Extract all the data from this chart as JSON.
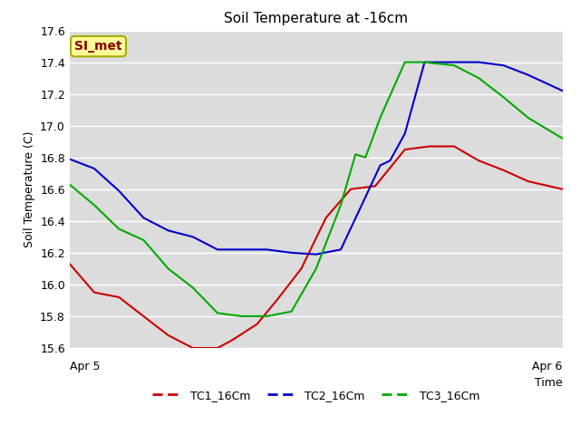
{
  "title": "Soil Temperature at -16cm",
  "xlabel": "Time",
  "ylabel": "Soil Temperature (C)",
  "xlim": [
    0,
    1
  ],
  "ylim": [
    15.6,
    17.6
  ],
  "yticks": [
    15.6,
    15.8,
    16.0,
    16.2,
    16.4,
    16.6,
    16.8,
    17.0,
    17.2,
    17.4,
    17.6
  ],
  "xtick_labels": [
    "Apr 5",
    "Apr 6"
  ],
  "xtick_positions": [
    0.0,
    1.0
  ],
  "annotation_text": "SI_met",
  "annotation_color": "#8B0000",
  "annotation_bg": "#FFFF99",
  "annotation_border": "#AAAA00",
  "plot_bg_color": "#DCDCDC",
  "fig_bg_color": "#FFFFFF",
  "TC1_color": "#CC0000",
  "TC2_color": "#0000CC",
  "TC3_color": "#00AA00",
  "TC1_x": [
    0.0,
    0.05,
    0.1,
    0.15,
    0.2,
    0.25,
    0.28,
    0.3,
    0.33,
    0.38,
    0.42,
    0.47,
    0.52,
    0.57,
    0.62,
    0.68,
    0.73,
    0.78,
    0.83,
    0.88,
    0.93,
    1.0
  ],
  "TC1_y": [
    16.13,
    15.95,
    15.92,
    15.8,
    15.68,
    15.6,
    15.6,
    15.6,
    15.65,
    15.75,
    15.9,
    16.1,
    16.42,
    16.6,
    16.62,
    16.85,
    16.87,
    16.87,
    16.78,
    16.72,
    16.65,
    16.6
  ],
  "TC2_x": [
    0.0,
    0.05,
    0.1,
    0.15,
    0.2,
    0.25,
    0.3,
    0.35,
    0.4,
    0.45,
    0.5,
    0.55,
    0.6,
    0.63,
    0.65,
    0.68,
    0.72,
    0.78,
    0.83,
    0.88,
    0.93,
    1.0
  ],
  "TC2_y": [
    16.79,
    16.73,
    16.59,
    16.42,
    16.34,
    16.3,
    16.22,
    16.22,
    16.22,
    16.2,
    16.19,
    16.22,
    16.55,
    16.75,
    16.78,
    16.95,
    17.4,
    17.4,
    17.4,
    17.38,
    17.32,
    17.22
  ],
  "TC3_x": [
    0.0,
    0.05,
    0.1,
    0.15,
    0.2,
    0.25,
    0.3,
    0.35,
    0.4,
    0.45,
    0.5,
    0.55,
    0.58,
    0.6,
    0.63,
    0.68,
    0.72,
    0.78,
    0.83,
    0.88,
    0.93,
    1.0
  ],
  "TC3_y": [
    16.63,
    16.5,
    16.35,
    16.28,
    16.1,
    15.98,
    15.82,
    15.8,
    15.8,
    15.83,
    16.1,
    16.5,
    16.82,
    16.8,
    17.05,
    17.4,
    17.4,
    17.38,
    17.3,
    17.18,
    17.05,
    16.92
  ]
}
